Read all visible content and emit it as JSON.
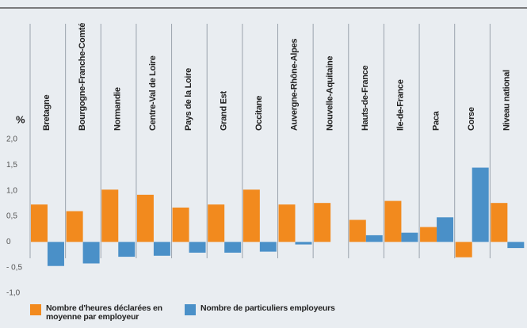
{
  "chart_data": {
    "type": "bar",
    "y_label": "%",
    "categories": [
      "Bretagne",
      "Bourgogne-Franche-Comté",
      "Normandie",
      "Centre-Val de Loire",
      "Pays de la Loire",
      "Grand Est",
      "Occitane",
      "Auvergne-Rhône-Alpes",
      "Nouvelle-Aquitaine",
      "Hauts-de-France",
      "Ile-de-France",
      "Paca",
      "Corse",
      "Niveau national"
    ],
    "series": [
      {
        "name": "Nombre d'heures déclarées en moyenne par employeur",
        "color": "#f28a1e",
        "values": [
          0.73,
          0.6,
          1.02,
          0.92,
          0.67,
          0.73,
          1.02,
          0.73,
          0.76,
          0.43,
          0.8,
          0.29,
          -0.3,
          0.76
        ]
      },
      {
        "name": "Nombre de particuliers employeurs",
        "color": "#4a90c8",
        "values": [
          -0.47,
          -0.42,
          -0.29,
          -0.27,
          -0.21,
          -0.21,
          -0.19,
          -0.05,
          0,
          0.13,
          0.18,
          0.48,
          1.45,
          -0.12
        ]
      }
    ],
    "ylim": [
      -1,
      2
    ],
    "yticks": [
      {
        "value": 2,
        "label": "2,0"
      },
      {
        "value": 1.5,
        "label": "1,5"
      },
      {
        "value": 1,
        "label": "1,0"
      },
      {
        "value": 0.5,
        "label": "0,5"
      },
      0,
      {
        "value": -0.5,
        "label": "- 0,5"
      },
      {
        "value": -1,
        "label": "-1,0"
      }
    ]
  }
}
